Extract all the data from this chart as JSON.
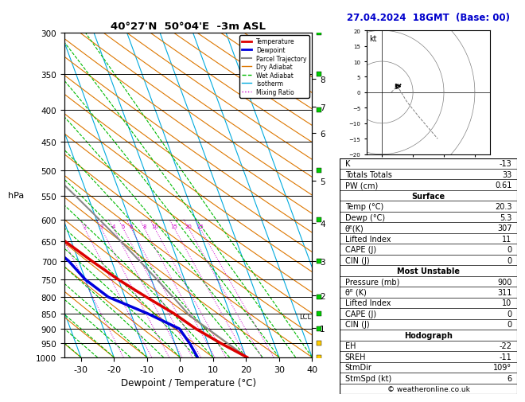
{
  "title_left": "40°27'N  50°04'E  -3m ASL",
  "title_right": "27.04.2024  18GMT  (Base: 00)",
  "xlabel": "Dewpoint / Temperature (°C)",
  "ylabel_left": "hPa",
  "pressure_levels": [
    300,
    350,
    400,
    450,
    500,
    550,
    600,
    650,
    700,
    750,
    800,
    850,
    900,
    950,
    1000
  ],
  "temp_color": "#dd0000",
  "dewp_color": "#0000dd",
  "parcel_color": "#888888",
  "dry_adiabat_color": "#dd7700",
  "wet_adiabat_color": "#00bb00",
  "isotherm_color": "#00aadd",
  "mixing_ratio_color": "#cc00cc",
  "background": "#ffffff",
  "xlim": [
    -35,
    40
  ],
  "p_min": 300,
  "p_max": 1000,
  "skew_factor": 30.0,
  "km_ticks": [
    1,
    2,
    3,
    4,
    5,
    6,
    7,
    8
  ],
  "km_pressures": [
    898,
    795,
    700,
    608,
    520,
    436,
    395,
    356
  ],
  "stats": {
    "K": "-13",
    "Totals Totals": "33",
    "PW (cm)": "0.61",
    "Surface_Temp": "20.3",
    "Surface_Dewp": "5.3",
    "Surface_theta_e": "307",
    "Surface_LI": "11",
    "Surface_CAPE": "0",
    "Surface_CIN": "0",
    "MU_Pressure": "900",
    "MU_theta_e": "311",
    "MU_LI": "10",
    "MU_CAPE": "0",
    "MU_CIN": "0",
    "EH": "-22",
    "SREH": "-11",
    "StmDir": "109°",
    "StmSpd": "6"
  },
  "lcl_pressure": 860,
  "copyright": "© weatheronline.co.uk"
}
